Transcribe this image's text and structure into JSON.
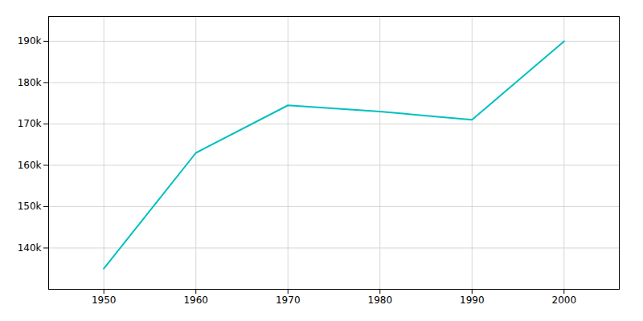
{
  "chart_data": {
    "type": "line",
    "x": [
      1950,
      1960,
      1970,
      1980,
      1990,
      2000
    ],
    "series": [
      {
        "color": "#00C0C0",
        "values": [
          135000,
          163000,
          174500,
          173000,
          171000,
          190000
        ]
      }
    ],
    "xlim": [
      1944,
      2006
    ],
    "xticks": [
      1950,
      1960,
      1970,
      1980,
      1990,
      2000
    ],
    "ylim": [
      130000,
      196000
    ],
    "yticks": [
      {
        "value": 140000,
        "label": "140k"
      },
      {
        "value": 150000,
        "label": "150k"
      },
      {
        "value": 160000,
        "label": "160k"
      },
      {
        "value": 170000,
        "label": "170k"
      },
      {
        "value": 180000,
        "label": "180k"
      },
      {
        "value": 190000,
        "label": "190k"
      }
    ],
    "grid": true
  }
}
